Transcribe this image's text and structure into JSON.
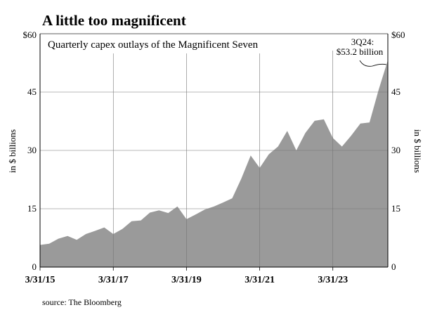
{
  "chart_data": {
    "type": "area",
    "title": "A little too magnificent",
    "subtitle": "Quarterly capex outlays of the Magnificent Seven",
    "ylabel_left": "in $ billions",
    "ylabel_right": "in $ billions",
    "ylim": [
      0,
      60
    ],
    "yticks": [
      "0",
      "15",
      "30",
      "45",
      "$60"
    ],
    "ytick_values": [
      0,
      15,
      30,
      45,
      60
    ],
    "xticks": [
      "3/31/15",
      "3/31/17",
      "3/31/19",
      "3/31/21",
      "3/31/23"
    ],
    "xtick_dates": [
      "2015-03-31",
      "2017-03-31",
      "2019-03-31",
      "2021-03-31",
      "2023-03-31"
    ],
    "grid": true,
    "color": "#9a9a9a",
    "annotation": {
      "text_line1": "3Q24:",
      "text_line2": "$53.2 billion",
      "date": "2024-09-30",
      "value": 53.2
    },
    "source": "source: The Bloomberg",
    "x": [
      "2015-03-31",
      "2015-06-30",
      "2015-09-30",
      "2015-12-31",
      "2016-03-31",
      "2016-06-30",
      "2016-09-30",
      "2016-12-31",
      "2017-03-31",
      "2017-06-30",
      "2017-09-30",
      "2017-12-31",
      "2018-03-31",
      "2018-06-30",
      "2018-09-30",
      "2018-12-31",
      "2019-03-31",
      "2019-06-30",
      "2019-09-30",
      "2019-12-31",
      "2020-03-31",
      "2020-06-30",
      "2020-09-30",
      "2020-12-31",
      "2021-03-31",
      "2021-06-30",
      "2021-09-30",
      "2021-12-31",
      "2022-03-31",
      "2022-06-30",
      "2022-09-30",
      "2022-12-31",
      "2023-03-31",
      "2023-06-30",
      "2023-09-30",
      "2023-12-31",
      "2024-03-31",
      "2024-06-30",
      "2024-09-30"
    ],
    "values": [
      5.7,
      6.0,
      7.3,
      8.0,
      7.0,
      8.5,
      9.3,
      10.2,
      8.5,
      9.8,
      11.8,
      12.0,
      14.0,
      14.6,
      13.9,
      15.6,
      12.3,
      13.5,
      14.8,
      15.6,
      16.6,
      17.7,
      22.8,
      28.7,
      25.5,
      29.0,
      31.0,
      35.0,
      30.0,
      34.5,
      37.6,
      38.0,
      33.2,
      31.0,
      33.8,
      36.9,
      37.2,
      45.6,
      53.2
    ]
  }
}
